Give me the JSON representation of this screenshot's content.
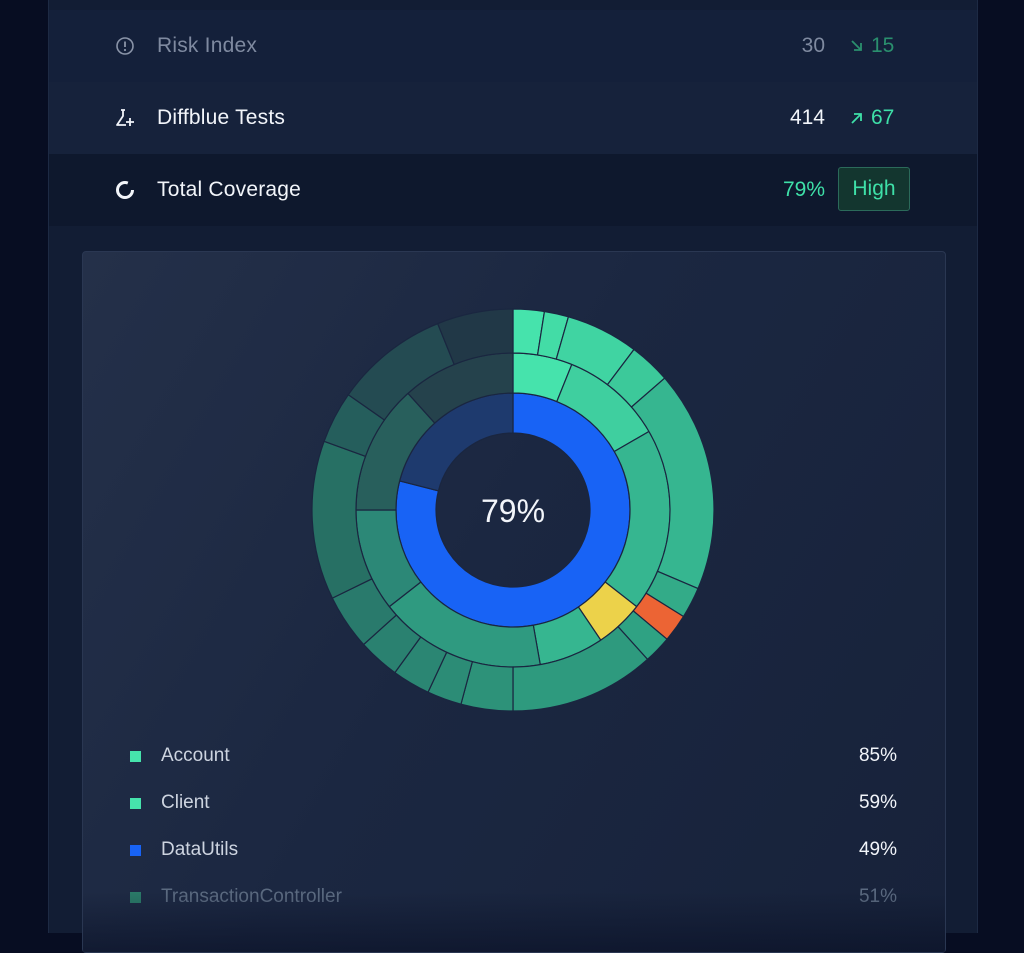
{
  "metrics": {
    "risk": {
      "label": "Risk Index",
      "value": "30",
      "delta": "15",
      "icon": "alert-circle-icon"
    },
    "tests": {
      "label": "Diffblue Tests",
      "value": "414",
      "delta": "67",
      "icon": "flask-plus-icon"
    },
    "coverage": {
      "label": "Total Coverage",
      "value": "79%",
      "badge": "High",
      "icon": "coverage-ring-icon"
    }
  },
  "colors": {
    "green_bright": "#46e3ac",
    "green": "#36b690",
    "green_dim": "#2a7a68",
    "blue": "#1863f5",
    "yellow": "#ecd24a",
    "orange": "#ec6434",
    "muted": "#234b4e"
  },
  "chart_data": {
    "type": "sunburst",
    "center_label": "79%",
    "inner_ring": {
      "covered": 0.79
    },
    "legend": [
      {
        "name": "Account",
        "value": "85%",
        "color": "#46e3ac"
      },
      {
        "name": "Client",
        "value": "59%",
        "color": "#46e3ac"
      },
      {
        "name": "DataUtils",
        "value": "49%",
        "color": "#1863f5"
      },
      {
        "name": "TransactionController",
        "value": "51%",
        "color": "#2a7a68"
      }
    ]
  }
}
